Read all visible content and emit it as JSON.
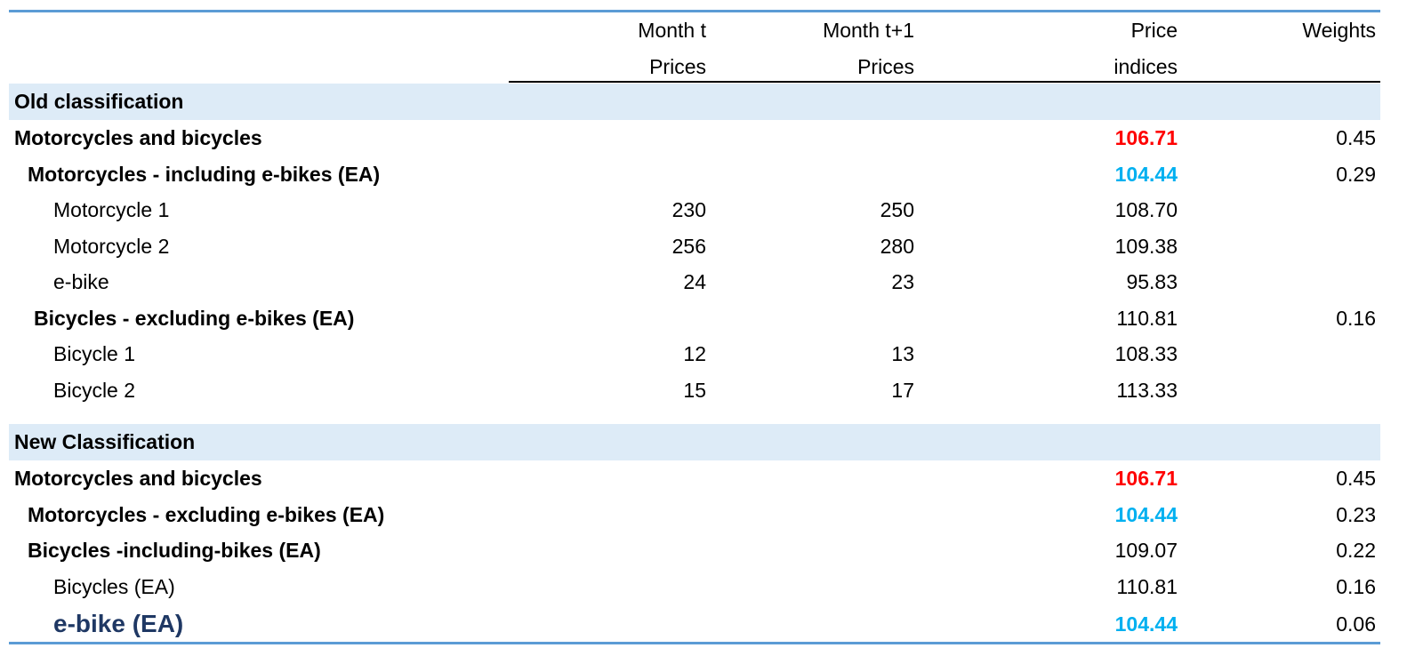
{
  "headers": {
    "month_t": [
      "Month t",
      "Prices"
    ],
    "month_t1": [
      "Month t+1",
      "Prices"
    ],
    "price_indices": [
      "Price",
      "indices"
    ],
    "weights": "Weights"
  },
  "sections": [
    {
      "title": "Old classification",
      "rows": [
        {
          "label": "Motorcycles and bicycles",
          "level": 0,
          "bold": true,
          "t": "",
          "t1": "",
          "index": "106.71",
          "index_color": "red",
          "weight": "0.45"
        },
        {
          "label": "Motorcycles - including e-bikes (EA)",
          "level": 1,
          "bold": true,
          "t": "",
          "t1": "",
          "index": "104.44",
          "index_color": "blue",
          "weight": "0.29"
        },
        {
          "label": "Motorcycle 1",
          "level": 2,
          "bold": false,
          "t": "230",
          "t1": "250",
          "index": "108.70",
          "index_color": "",
          "weight": ""
        },
        {
          "label": "Motorcycle 2",
          "level": 2,
          "bold": false,
          "t": "256",
          "t1": "280",
          "index": "109.38",
          "index_color": "",
          "weight": ""
        },
        {
          "label": "e-bike",
          "level": 2,
          "bold": false,
          "t": "24",
          "t1": "23",
          "index": "95.83",
          "index_color": "",
          "weight": ""
        },
        {
          "label": "Bicycles - excluding e-bikes (EA)",
          "level": 1.5,
          "bold": true,
          "t": "",
          "t1": "",
          "index": "110.81",
          "index_color": "",
          "weight": "0.16"
        },
        {
          "label": "Bicycle 1",
          "level": 2,
          "bold": false,
          "t": "12",
          "t1": "13",
          "index": "108.33",
          "index_color": "",
          "weight": ""
        },
        {
          "label": "Bicycle 2",
          "level": 2,
          "bold": false,
          "t": "15",
          "t1": "17",
          "index": "113.33",
          "index_color": "",
          "weight": ""
        }
      ]
    },
    {
      "title": "New Classification",
      "rows": [
        {
          "label": "Motorcycles and bicycles",
          "level": 0,
          "bold": true,
          "t": "",
          "t1": "",
          "index": "106.71",
          "index_color": "red",
          "weight": "0.45"
        },
        {
          "label": "Motorcycles - excluding e-bikes (EA)",
          "level": 1,
          "bold": true,
          "t": "",
          "t1": "",
          "index": "104.44",
          "index_color": "blue",
          "weight": "0.23"
        },
        {
          "label": "Bicycles -including-bikes (EA)",
          "level": 1,
          "bold": true,
          "t": "",
          "t1": "",
          "index": "109.07",
          "index_color": "",
          "weight": "0.22"
        },
        {
          "label": "Bicycles (EA)",
          "level": 2,
          "bold": false,
          "t": "",
          "t1": "",
          "index": "110.81",
          "index_color": "",
          "weight": "0.16"
        },
        {
          "label": "e-bike (EA)",
          "level": 2,
          "bold": true,
          "label_color": "navy",
          "t": "",
          "t1": "",
          "index": "104.44",
          "index_color": "blue",
          "weight": "0.06"
        }
      ]
    }
  ]
}
